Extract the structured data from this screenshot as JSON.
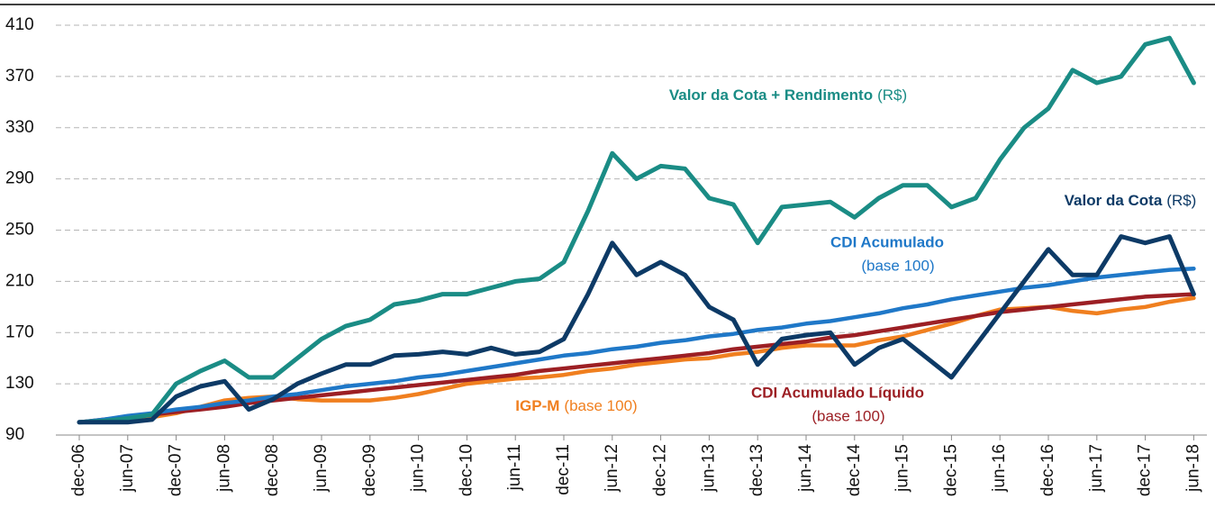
{
  "chart_data": {
    "type": "line",
    "categories": [
      "dec-06",
      null,
      "jun-07",
      null,
      "dec-07",
      null,
      "jun-08",
      null,
      "dec-08",
      null,
      "jun-09",
      null,
      "dec-09",
      null,
      "jun-10",
      null,
      "dec-10",
      null,
      "jun-11",
      null,
      "dec-11",
      null,
      "jun-12",
      null,
      "dec-12",
      null,
      "jun-13",
      null,
      "dec-13",
      null,
      "jun-14",
      null,
      "dec-14",
      null,
      "jun-15",
      null,
      "dec-15",
      null,
      "jun-16",
      null,
      "dec-16",
      null,
      "jun-17",
      null,
      "dec-17",
      null,
      "jun-18"
    ],
    "series": [
      {
        "name": "Valor da Cota + Rendimento",
        "note": "(R$)",
        "color": "#1a8c85",
        "values": [
          100,
          101,
          103,
          106,
          130,
          140,
          148,
          135,
          135,
          150,
          165,
          175,
          180,
          192,
          195,
          200,
          200,
          205,
          210,
          212,
          225,
          265,
          310,
          290,
          300,
          298,
          275,
          270,
          240,
          268,
          270,
          272,
          260,
          275,
          285,
          285,
          268,
          275,
          305,
          330,
          345,
          375,
          365,
          370,
          395,
          400,
          365
        ]
      },
      {
        "name": "Valor da Cota",
        "note": "(R$)",
        "color": "#0d3a66",
        "values": [
          100,
          100,
          100,
          102,
          120,
          128,
          132,
          110,
          118,
          130,
          138,
          145,
          145,
          152,
          153,
          155,
          153,
          158,
          153,
          155,
          165,
          200,
          240,
          215,
          225,
          215,
          190,
          180,
          145,
          165,
          168,
          170,
          145,
          158,
          165,
          150,
          135,
          160,
          185,
          210,
          235,
          215,
          215,
          245,
          240,
          245,
          200
        ]
      },
      {
        "name": "CDI Acumulado",
        "note": "(base 100)",
        "color": "#1f78c8",
        "values": [
          100,
          102,
          105,
          107,
          110,
          112,
          115,
          117,
          120,
          122,
          125,
          128,
          130,
          132,
          135,
          137,
          140,
          143,
          146,
          149,
          152,
          154,
          157,
          159,
          162,
          164,
          167,
          169,
          172,
          174,
          177,
          179,
          182,
          185,
          189,
          192,
          196,
          199,
          202,
          205,
          207,
          210,
          213,
          215,
          217,
          219,
          220
        ]
      },
      {
        "name": "CDI Acumulado Líquido",
        "note": "(base 100)",
        "color": "#9c1f24",
        "values": [
          100,
          102,
          104,
          106,
          108,
          110,
          112,
          115,
          117,
          119,
          121,
          123,
          125,
          127,
          129,
          131,
          133,
          135,
          137,
          140,
          142,
          144,
          146,
          148,
          150,
          152,
          154,
          157,
          159,
          161,
          163,
          166,
          168,
          171,
          174,
          177,
          180,
          183,
          186,
          188,
          190,
          192,
          194,
          196,
          198,
          199,
          200
        ]
      },
      {
        "name": "IGP-M",
        "note": "(base 100)",
        "color": "#f07f1f",
        "values": [
          100,
          100,
          101,
          104,
          107,
          112,
          117,
          119,
          120,
          118,
          117,
          117,
          117,
          119,
          122,
          126,
          130,
          132,
          134,
          135,
          137,
          140,
          142,
          145,
          147,
          149,
          150,
          153,
          155,
          158,
          160,
          160,
          160,
          164,
          167,
          172,
          177,
          183,
          188,
          189,
          190,
          187,
          185,
          188,
          190,
          194,
          197
        ]
      }
    ],
    "ylim": [
      90,
      410
    ],
    "yticks": [
      90,
      130,
      170,
      210,
      250,
      290,
      330,
      370,
      410
    ],
    "grid": true
  }
}
